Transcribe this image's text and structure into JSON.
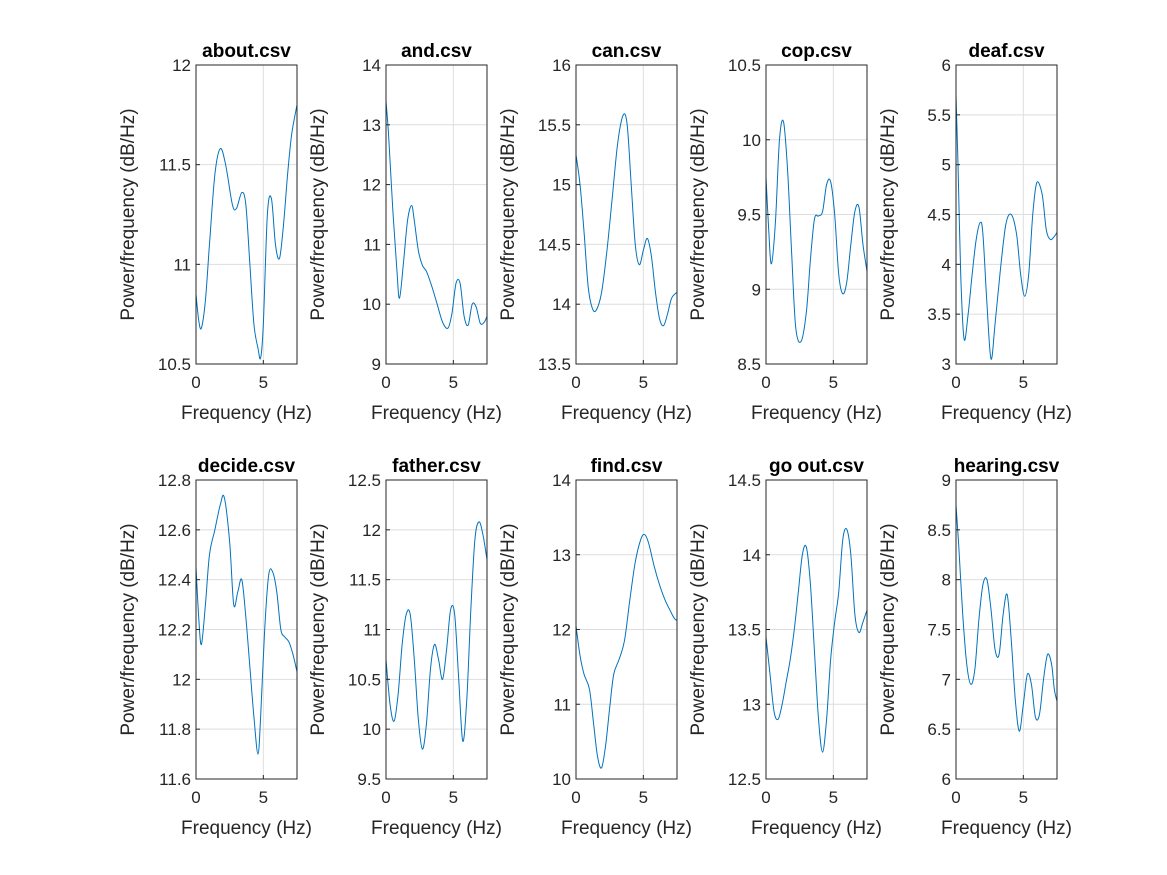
{
  "figure": {
    "background": "#ffffff",
    "line_color": "#0072bd",
    "grid_color": "#dedede",
    "axis_color": "#262626"
  },
  "chart_data": [
    {
      "type": "line",
      "title": "about.csv",
      "xlabel": "Frequency (Hz)",
      "ylabel": "Power/frequency (dB/Hz)",
      "xlim": [
        0,
        7.5
      ],
      "ylim": [
        10.5,
        12
      ],
      "xticks": [
        0,
        5
      ],
      "xtick_labels": [
        "0",
        "5"
      ],
      "yticks": [
        10.5,
        11,
        11.5,
        12
      ],
      "ytick_labels": [
        "10.5",
        "11",
        "11.5",
        "12"
      ],
      "grid": true,
      "series": [
        {
          "x": [
            0,
            0.2,
            0.4,
            0.7,
            1.0,
            1.4,
            1.8,
            2.2,
            2.7,
            3.0,
            3.4,
            3.7,
            4.0,
            4.3,
            4.6,
            4.8,
            5.0,
            5.3,
            5.6,
            5.9,
            6.2,
            6.5,
            6.8,
            7.1,
            7.5
          ],
          "y": [
            10.85,
            10.72,
            10.68,
            10.82,
            11.1,
            11.45,
            11.58,
            11.5,
            11.3,
            11.28,
            11.36,
            11.3,
            11.0,
            10.7,
            10.58,
            10.53,
            10.7,
            11.25,
            11.33,
            11.1,
            11.03,
            11.2,
            11.45,
            11.65,
            11.8
          ]
        }
      ]
    },
    {
      "type": "line",
      "title": "and.csv",
      "xlabel": "Frequency (Hz)",
      "ylabel": "Power/frequency (dB/Hz)",
      "xlim": [
        0,
        7.5
      ],
      "ylim": [
        9,
        14
      ],
      "xticks": [
        0,
        5
      ],
      "xtick_labels": [
        "0",
        "5"
      ],
      "yticks": [
        9,
        10,
        11,
        12,
        13,
        14
      ],
      "ytick_labels": [
        "9",
        "10",
        "11",
        "12",
        "13",
        "14"
      ],
      "grid": true,
      "series": [
        {
          "x": [
            0,
            0.2,
            0.5,
            0.8,
            1.0,
            1.3,
            1.6,
            1.9,
            2.1,
            2.4,
            2.7,
            3.0,
            3.4,
            3.8,
            4.2,
            4.6,
            4.9,
            5.2,
            5.5,
            5.8,
            6.1,
            6.4,
            6.7,
            7.0,
            7.3,
            7.5
          ],
          "y": [
            13.4,
            12.8,
            11.6,
            10.6,
            10.1,
            10.7,
            11.4,
            11.65,
            11.4,
            10.9,
            10.65,
            10.55,
            10.3,
            10.0,
            9.7,
            9.6,
            9.85,
            10.35,
            10.35,
            9.8,
            9.65,
            10.0,
            9.95,
            9.68,
            9.7,
            9.8
          ]
        }
      ]
    },
    {
      "type": "line",
      "title": "can.csv",
      "xlabel": "Frequency (Hz)",
      "ylabel": "Power/frequency (dB/Hz)",
      "xlim": [
        0,
        7.5
      ],
      "ylim": [
        13.5,
        16
      ],
      "xticks": [
        0,
        5
      ],
      "xtick_labels": [
        "0",
        "5"
      ],
      "yticks": [
        13.5,
        14,
        14.5,
        15,
        15.5,
        16
      ],
      "ytick_labels": [
        "13.5",
        "14",
        "14.5",
        "15",
        "15.5",
        "16"
      ],
      "grid": true,
      "series": [
        {
          "x": [
            0,
            0.3,
            0.6,
            0.9,
            1.2,
            1.5,
            1.9,
            2.3,
            2.7,
            3.1,
            3.5,
            3.8,
            4.1,
            4.4,
            4.7,
            5.0,
            5.3,
            5.6,
            5.9,
            6.2,
            6.5,
            6.8,
            7.1,
            7.5
          ],
          "y": [
            15.25,
            15.0,
            14.6,
            14.15,
            13.97,
            13.95,
            14.1,
            14.45,
            14.9,
            15.35,
            15.58,
            15.5,
            15.0,
            14.5,
            14.33,
            14.45,
            14.55,
            14.4,
            14.1,
            13.88,
            13.82,
            13.92,
            14.05,
            14.1
          ]
        }
      ]
    },
    {
      "type": "line",
      "title": "cop.csv",
      "xlabel": "Frequency (Hz)",
      "ylabel": "Power/frequency (dB/Hz)",
      "xlim": [
        0,
        7.5
      ],
      "ylim": [
        8.5,
        10.5
      ],
      "xticks": [
        0,
        5
      ],
      "xtick_labels": [
        "0",
        "5"
      ],
      "yticks": [
        8.5,
        9,
        9.5,
        10,
        10.5
      ],
      "ytick_labels": [
        "8.5",
        "9",
        "9.5",
        "10",
        "10.5"
      ],
      "grid": true,
      "series": [
        {
          "x": [
            0,
            0.2,
            0.4,
            0.7,
            1.0,
            1.3,
            1.6,
            1.9,
            2.2,
            2.6,
            3.0,
            3.3,
            3.6,
            3.9,
            4.2,
            4.5,
            4.8,
            5.1,
            5.4,
            5.7,
            6.0,
            6.3,
            6.6,
            6.9,
            7.2,
            7.5
          ],
          "y": [
            9.75,
            9.4,
            9.17,
            9.45,
            10.0,
            10.12,
            9.8,
            9.25,
            8.75,
            8.65,
            8.85,
            9.2,
            9.47,
            9.49,
            9.52,
            9.7,
            9.72,
            9.5,
            9.1,
            8.97,
            9.05,
            9.3,
            9.52,
            9.55,
            9.3,
            9.12
          ]
        }
      ]
    },
    {
      "type": "line",
      "title": "deaf.csv",
      "xlabel": "Frequency (Hz)",
      "ylabel": "Power/frequency (dB/Hz)",
      "xlim": [
        0,
        7.5
      ],
      "ylim": [
        3,
        6
      ],
      "xticks": [
        0,
        5
      ],
      "xtick_labels": [
        "0",
        "5"
      ],
      "yticks": [
        3,
        3.5,
        4,
        4.5,
        5,
        5.5,
        6
      ],
      "ytick_labels": [
        "3",
        "3.5",
        "4",
        "4.5",
        "5",
        "5.5",
        "6"
      ],
      "grid": true,
      "series": [
        {
          "x": [
            0,
            0.15,
            0.35,
            0.6,
            0.9,
            1.2,
            1.5,
            1.8,
            2.0,
            2.3,
            2.6,
            2.9,
            3.3,
            3.7,
            4.1,
            4.5,
            4.8,
            5.1,
            5.4,
            5.7,
            6.0,
            6.4,
            6.7,
            7.0,
            7.3,
            7.5
          ],
          "y": [
            5.7,
            5.0,
            3.9,
            3.25,
            3.5,
            3.9,
            4.25,
            4.42,
            4.3,
            3.6,
            3.05,
            3.4,
            3.95,
            4.4,
            4.5,
            4.3,
            3.9,
            3.68,
            3.9,
            4.5,
            4.82,
            4.7,
            4.35,
            4.25,
            4.28,
            4.32
          ]
        }
      ]
    },
    {
      "type": "line",
      "title": "decide.csv",
      "xlabel": "Frequency (Hz)",
      "ylabel": "Power/frequency (dB/Hz)",
      "xlim": [
        0,
        7.5
      ],
      "ylim": [
        11.6,
        12.8
      ],
      "xticks": [
        0,
        5
      ],
      "xtick_labels": [
        "0",
        "5"
      ],
      "yticks": [
        11.6,
        11.8,
        12,
        12.2,
        12.4,
        12.6,
        12.8
      ],
      "ytick_labels": [
        "11.6",
        "11.8",
        "12",
        "12.2",
        "12.4",
        "12.6",
        "12.8"
      ],
      "grid": true,
      "series": [
        {
          "x": [
            0,
            0.2,
            0.4,
            0.7,
            1.0,
            1.4,
            1.8,
            2.1,
            2.5,
            2.8,
            3.1,
            3.4,
            3.7,
            4.0,
            4.3,
            4.6,
            4.8,
            5.1,
            5.4,
            5.7,
            6.0,
            6.3,
            6.6,
            6.9,
            7.2,
            7.5
          ],
          "y": [
            12.45,
            12.25,
            12.14,
            12.3,
            12.5,
            12.6,
            12.7,
            12.73,
            12.55,
            12.3,
            12.35,
            12.4,
            12.25,
            12.05,
            11.85,
            11.7,
            11.85,
            12.2,
            12.42,
            12.43,
            12.35,
            12.2,
            12.17,
            12.15,
            12.1,
            12.03
          ]
        }
      ]
    },
    {
      "type": "line",
      "title": "father.csv",
      "xlabel": "Frequency (Hz)",
      "ylabel": "Power/frequency (dB/Hz)",
      "xlim": [
        0,
        7.5
      ],
      "ylim": [
        9.5,
        12.5
      ],
      "xticks": [
        0,
        5
      ],
      "xtick_labels": [
        "0",
        "5"
      ],
      "yticks": [
        9.5,
        10,
        10.5,
        11,
        11.5,
        12,
        12.5
      ],
      "ytick_labels": [
        "9.5",
        "10",
        "10.5",
        "11",
        "11.5",
        "12",
        "12.5"
      ],
      "grid": true,
      "series": [
        {
          "x": [
            0,
            0.3,
            0.6,
            0.9,
            1.2,
            1.5,
            1.8,
            2.1,
            2.4,
            2.7,
            3.0,
            3.3,
            3.6,
            3.9,
            4.2,
            4.5,
            4.8,
            5.1,
            5.4,
            5.7,
            6.0,
            6.3,
            6.6,
            6.9,
            7.2,
            7.5
          ],
          "y": [
            10.7,
            10.25,
            10.08,
            10.35,
            10.85,
            11.15,
            11.15,
            10.7,
            10.1,
            9.8,
            10.05,
            10.6,
            10.85,
            10.7,
            10.5,
            10.8,
            11.2,
            11.15,
            10.5,
            9.88,
            10.3,
            11.2,
            11.9,
            12.08,
            11.95,
            11.7
          ]
        }
      ]
    },
    {
      "type": "line",
      "title": "find.csv",
      "xlabel": "Frequency (Hz)",
      "ylabel": "Power/frequency (dB/Hz)",
      "xlim": [
        0,
        7.5
      ],
      "ylim": [
        10,
        14
      ],
      "xticks": [
        0,
        5
      ],
      "xtick_labels": [
        "0",
        "5"
      ],
      "yticks": [
        10,
        11,
        12,
        13,
        14
      ],
      "ytick_labels": [
        "10",
        "11",
        "12",
        "13",
        "14"
      ],
      "grid": true,
      "series": [
        {
          "x": [
            0,
            0.3,
            0.6,
            1.0,
            1.3,
            1.6,
            1.9,
            2.2,
            2.5,
            2.8,
            3.2,
            3.6,
            4.0,
            4.4,
            4.8,
            5.1,
            5.4,
            5.8,
            6.2,
            6.6,
            7.0,
            7.3,
            7.5
          ],
          "y": [
            12.05,
            11.65,
            11.4,
            11.2,
            10.75,
            10.3,
            10.15,
            10.45,
            10.95,
            11.4,
            11.6,
            11.85,
            12.4,
            12.9,
            13.2,
            13.27,
            13.15,
            12.85,
            12.6,
            12.4,
            12.25,
            12.15,
            12.12
          ]
        }
      ]
    },
    {
      "type": "line",
      "title": "go out.csv",
      "xlabel": "Frequency (Hz)",
      "ylabel": "Power/frequency (dB/Hz)",
      "xlim": [
        0,
        7.5
      ],
      "ylim": [
        12.5,
        14.5
      ],
      "xticks": [
        0,
        5
      ],
      "xtick_labels": [
        "0",
        "5"
      ],
      "yticks": [
        12.5,
        13,
        13.5,
        14,
        14.5
      ],
      "ytick_labels": [
        "12.5",
        "13",
        "13.5",
        "14",
        "14.5"
      ],
      "grid": true,
      "series": [
        {
          "x": [
            0,
            0.3,
            0.6,
            0.9,
            1.2,
            1.5,
            1.8,
            2.1,
            2.4,
            2.7,
            3.0,
            3.3,
            3.6,
            3.9,
            4.2,
            4.5,
            4.8,
            5.1,
            5.4,
            5.7,
            6.0,
            6.3,
            6.6,
            6.9,
            7.2,
            7.5
          ],
          "y": [
            13.45,
            13.2,
            12.95,
            12.9,
            13.0,
            13.15,
            13.3,
            13.5,
            13.75,
            14.0,
            14.05,
            13.8,
            13.35,
            12.9,
            12.68,
            12.9,
            13.3,
            13.55,
            13.75,
            14.1,
            14.17,
            14.0,
            13.6,
            13.48,
            13.55,
            13.63
          ]
        }
      ]
    },
    {
      "type": "line",
      "title": "hearing.csv",
      "xlabel": "Frequency (Hz)",
      "ylabel": "Power/frequency (dB/Hz)",
      "xlim": [
        0,
        7.5
      ],
      "ylim": [
        6,
        9
      ],
      "xticks": [
        0,
        5
      ],
      "xtick_labels": [
        "0",
        "5"
      ],
      "yticks": [
        6,
        6.5,
        7,
        7.5,
        8,
        8.5,
        9
      ],
      "ytick_labels": [
        "6",
        "6.5",
        "7",
        "7.5",
        "8",
        "8.5",
        "9"
      ],
      "grid": true,
      "series": [
        {
          "x": [
            0,
            0.2,
            0.5,
            0.8,
            1.1,
            1.4,
            1.7,
            2.0,
            2.3,
            2.6,
            2.9,
            3.2,
            3.5,
            3.8,
            4.1,
            4.4,
            4.7,
            5.0,
            5.3,
            5.6,
            5.9,
            6.2,
            6.5,
            6.8,
            7.1,
            7.3,
            7.5
          ],
          "y": [
            8.75,
            8.35,
            7.65,
            7.15,
            6.95,
            7.1,
            7.6,
            7.95,
            8.0,
            7.7,
            7.3,
            7.25,
            7.65,
            7.85,
            7.4,
            6.8,
            6.48,
            6.75,
            7.05,
            6.95,
            6.62,
            6.65,
            7.0,
            7.25,
            7.15,
            6.9,
            6.78
          ]
        }
      ]
    }
  ]
}
